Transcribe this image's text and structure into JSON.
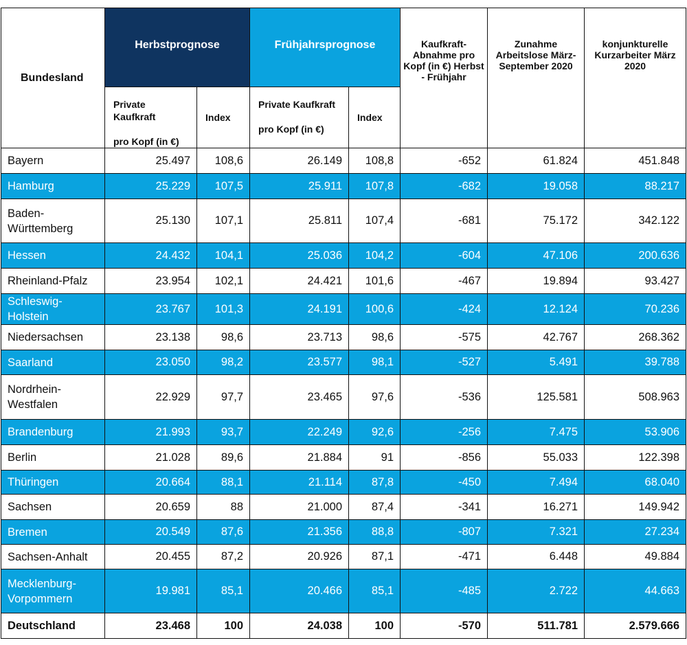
{
  "headers": {
    "bundesland": "Bundesland",
    "herbst": "Herbstprognose",
    "fruehjahr": "Frühjahrsprognose",
    "abnahme": "Kaufkraft-Abnahme pro Kopf (in €) Herbst - Frühjahr",
    "arbeitslose": "Zunahme Arbeitslose März-September 2020",
    "kurzarbeiter": "konjunkturelle Kurzarbeiter März 2020",
    "sub_kaufkraft_herbst_l1": "Private Kaufkraft",
    "sub_kaufkraft_herbst_l2": "pro Kopf (in €)",
    "sub_index_herbst": "Index",
    "sub_kaufkraft_fruh_l1": "Private Kaufkraft",
    "sub_kaufkraft_fruh_l2": "pro Kopf (in €)",
    "sub_index_fruh": "Index"
  },
  "rows": [
    {
      "land": "Bayern",
      "hk": "25.497",
      "hi": "108,6",
      "fk": "26.149",
      "fi": "108,8",
      "ab": "-652",
      "al": "61.824",
      "ka": "451.848"
    },
    {
      "land": "Hamburg",
      "hk": "25.229",
      "hi": "107,5",
      "fk": "25.911",
      "fi": "107,8",
      "ab": "-682",
      "al": "19.058",
      "ka": "88.217"
    },
    {
      "land": "Baden-Württemberg",
      "hk": "25.130",
      "hi": "107,1",
      "fk": "25.811",
      "fi": "107,4",
      "ab": "-681",
      "al": "75.172",
      "ka": "342.122"
    },
    {
      "land": "Hessen",
      "hk": "24.432",
      "hi": "104,1",
      "fk": "25.036",
      "fi": "104,2",
      "ab": "-604",
      "al": "47.106",
      "ka": "200.636"
    },
    {
      "land": "Rheinland-Pfalz",
      "hk": "23.954",
      "hi": "102,1",
      "fk": "24.421",
      "fi": "101,6",
      "ab": "-467",
      "al": "19.894",
      "ka": "93.427"
    },
    {
      "land": "Schleswig-Holstein",
      "hk": "23.767",
      "hi": "101,3",
      "fk": "24.191",
      "fi": "100,6",
      "ab": "-424",
      "al": "12.124",
      "ka": "70.236"
    },
    {
      "land": "Niedersachsen",
      "hk": "23.138",
      "hi": "98,6",
      "fk": "23.713",
      "fi": "98,6",
      "ab": "-575",
      "al": "42.767",
      "ka": "268.362"
    },
    {
      "land": "Saarland",
      "hk": "23.050",
      "hi": "98,2",
      "fk": "23.577",
      "fi": "98,1",
      "ab": "-527",
      "al": "5.491",
      "ka": "39.788"
    },
    {
      "land": "Nordrhein-Westfalen",
      "hk": "22.929",
      "hi": "97,7",
      "fk": "23.465",
      "fi": "97,6",
      "ab": "-536",
      "al": "125.581",
      "ka": "508.963"
    },
    {
      "land": "Brandenburg",
      "hk": "21.993",
      "hi": "93,7",
      "fk": "22.249",
      "fi": "92,6",
      "ab": "-256",
      "al": "7.475",
      "ka": "53.906"
    },
    {
      "land": "Berlin",
      "hk": "21.028",
      "hi": "89,6",
      "fk": "21.884",
      "fi": "91",
      "ab": "-856",
      "al": "55.033",
      "ka": "122.398"
    },
    {
      "land": "Thüringen",
      "hk": "20.664",
      "hi": "88,1",
      "fk": "21.114",
      "fi": "87,8",
      "ab": "-450",
      "al": "7.494",
      "ka": "68.040"
    },
    {
      "land": "Sachsen",
      "hk": "20.659",
      "hi": "88",
      "fk": "21.000",
      "fi": "87,4",
      "ab": "-341",
      "al": "16.271",
      "ka": "149.942"
    },
    {
      "land": "Bremen",
      "hk": "20.549",
      "hi": "87,6",
      "fk": "21.356",
      "fi": "88,8",
      "ab": "-807",
      "al": "7.321",
      "ka": "27.234"
    },
    {
      "land": "Sachsen-Anhalt",
      "hk": "20.455",
      "hi": "87,2",
      "fk": "20.926",
      "fi": "87,1",
      "ab": "-471",
      "al": "6.448",
      "ka": "49.884"
    },
    {
      "land": "Mecklenburg-Vorpommern",
      "hk": "19.981",
      "hi": "85,1",
      "fk": "20.466",
      "fi": "85,1",
      "ab": "-485",
      "al": "2.722",
      "ka": "44.663"
    }
  ],
  "total": {
    "land": "Deutschland",
    "hk": "23.468",
    "hi": "100",
    "fk": "24.038",
    "fi": "100",
    "ab": "-570",
    "al": "511.781",
    "ka": "2.579.666"
  },
  "colors": {
    "dark_blue": "#0f3460",
    "light_blue": "#0aa3df",
    "border": "#111111"
  }
}
